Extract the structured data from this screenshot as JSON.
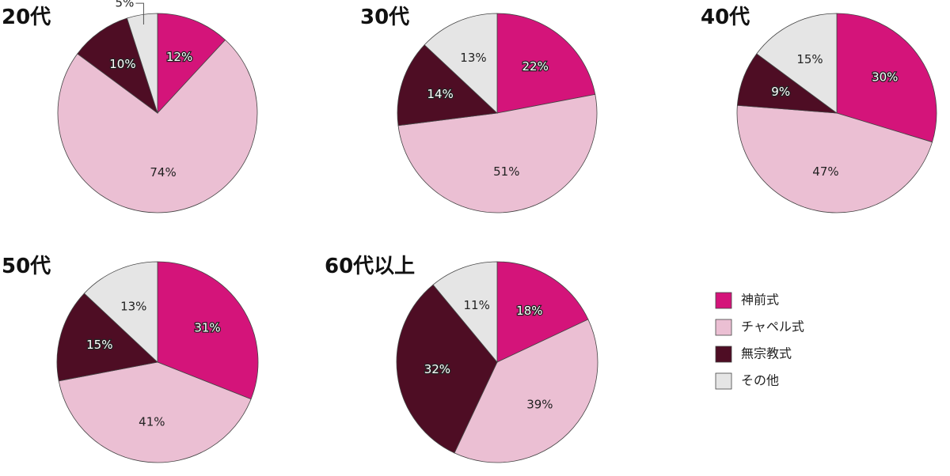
{
  "chart_data": [
    {
      "type": "pie",
      "title": "20代",
      "categories": [
        "神前式",
        "チャペル式",
        "無宗教式",
        "その他"
      ],
      "values": [
        12,
        74,
        10,
        5
      ],
      "value_labels": [
        "12%",
        "74%",
        "10%",
        "5%"
      ],
      "colors": [
        "#d4147a",
        "#ebbfd3",
        "#4e0d24",
        "#e5e5e5"
      ]
    },
    {
      "type": "pie",
      "title": "30代",
      "categories": [
        "神前式",
        "チャペル式",
        "無宗教式",
        "その他"
      ],
      "values": [
        22,
        51,
        14,
        13
      ],
      "value_labels": [
        "22%",
        "51%",
        "14%",
        "13%"
      ],
      "colors": [
        "#d4147a",
        "#ebbfd3",
        "#4e0d24",
        "#e5e5e5"
      ]
    },
    {
      "type": "pie",
      "title": "40代",
      "categories": [
        "神前式",
        "チャペル式",
        "無宗教式",
        "その他"
      ],
      "values": [
        30,
        47,
        9,
        15
      ],
      "value_labels": [
        "30%",
        "47%",
        "9%",
        "15%"
      ],
      "colors": [
        "#d4147a",
        "#ebbfd3",
        "#4e0d24",
        "#e5e5e5"
      ]
    },
    {
      "type": "pie",
      "title": "50代",
      "categories": [
        "神前式",
        "チャペル式",
        "無宗教式",
        "その他"
      ],
      "values": [
        31,
        41,
        15,
        13
      ],
      "value_labels": [
        "31%",
        "41%",
        "15%",
        "13%"
      ],
      "colors": [
        "#d4147a",
        "#ebbfd3",
        "#4e0d24",
        "#e5e5e5"
      ]
    },
    {
      "type": "pie",
      "title": "60代以上",
      "categories": [
        "神前式",
        "チャペル式",
        "無宗教式",
        "その他"
      ],
      "values": [
        18,
        39,
        32,
        11
      ],
      "value_labels": [
        "18%",
        "39%",
        "32%",
        "11%"
      ],
      "colors": [
        "#d4147a",
        "#ebbfd3",
        "#4e0d24",
        "#e5e5e5"
      ]
    }
  ]
}
